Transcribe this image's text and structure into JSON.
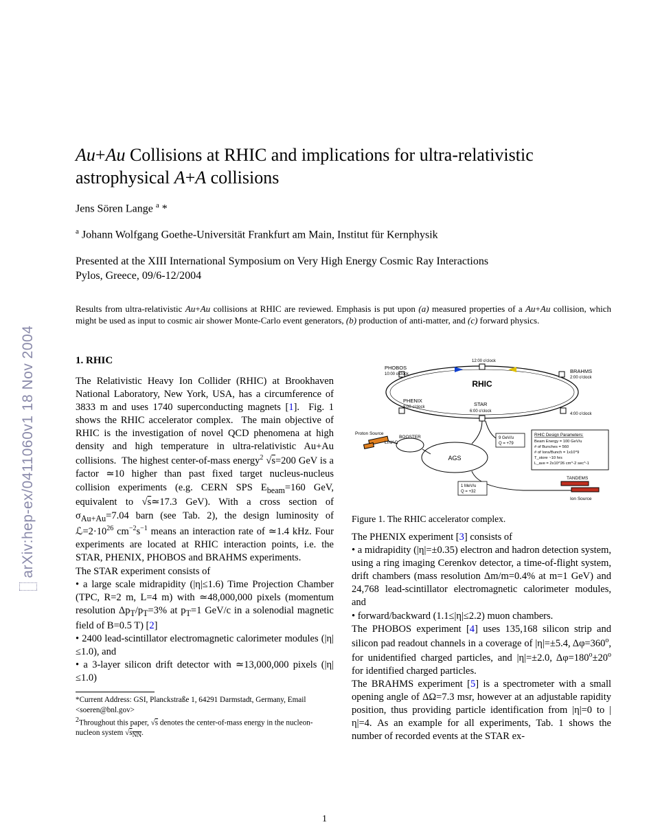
{
  "arxiv": {
    "id": "arXiv:hep-ex/0411060v1  18 Nov 2004"
  },
  "title_html": "<span class='ital'>Au</span>+<span class='ital'>Au</span> Collisions at RHIC and implications for ultra-relativistic astrophysical <span class='ital'>A</span>+<span class='ital'>A</span> collisions",
  "author_html": "Jens Sören Lange <sup>a</sup> *",
  "affil_html": "<sup>a</sup> Johann Wolfgang Goethe-Universität Frankfurt am Main, Institut für Kernphysik",
  "presented_html": "Presented at the XIII International Symposium on Very High Energy Cosmic Ray Interactions<br>Pylos, Greece, 09/6-12/2004",
  "abstract_html": "Results from ultra-relativistic <span class='ital'>Au</span>+<span class='ital'>Au</span> collisions at RHIC are reviewed. Emphasis is put upon <span class='ital'>(a)</span> measured properties of a <span class='ital'>Au</span>+<span class='ital'>Au</span> collision, which might be used as input to cosmic air shower Monte-Carlo event generators, <span class='ital'>(b)</span> production of anti-matter, and <span class='ital'>(c)</span> forward physics.",
  "section1_head": "1. RHIC",
  "col1_body_html": "The Relativistic Heavy Ion Collider (RHIC) at Brookhaven National Laboratory, New York, USA, has a circumference of 3833 m and uses 1740 superconducting magnets [<span class='ref'>1</span>]. &nbsp;Fig.&nbsp;1 shows the RHIC accelerator complex. &nbsp;The main objective of RHIC is the investigation of novel QCD phenomena at high density and high temperature in ultra-relativistic <span class='ital'>Au</span>+<span class='ital'>Au</span> collisions. &nbsp;The highest center-of-mass energy<sup>2</sup> √<span style='text-decoration:overline'>s</span>=200 GeV is a factor ≃10 higher than past fixed target nucleus-nucleus collision experiments (e.g. CERN SPS <span class='ital'>E<sub>beam</sub></span>=160 GeV, equivalent to √<span style='text-decoration:overline'>s</span>≃17.3 GeV). With a cross section of σ<sub><span class='ital'>Au+Au</span></sub>=7.04 barn (see Tab. 2), the design luminosity of ℒ=2·10<sup>26</sup> cm<sup>−2</sup>s<sup>−1</sup> means an interaction rate of ≃1.4 kHz. Four experiments are located at RHIC interaction points, i.e. the STAR, PHENIX, PHOBOS and BRAHMS experiments.<br>The STAR experiment consists of<br><span class='bullet'>• a large scale midrapidity (|η|≤1.6) Time Projection Chamber (TPC, <span class='ital'>R</span>=2 m, <span class='ital'>L</span>=4 m) with ≃48,000,000 pixels (momentum resolution Δ<span class='ital'>p<sub>T</sub></span>/<span class='ital'>p<sub>T</sub></span>=3% at <span class='ital'>p<sub>T</sub></span>=1 GeV/c in a solenodial magnetic field of <span class='ital'>B</span>=0.5 T) [<span class='ref'>2</span>]</span><br><span class='bullet'>• 2400 lead-scintillator electromagnetic calorimeter modules (|η|≤1.0), and</span><br><span class='bullet'>• a 3-layer silicon drift detector with ≃13,000,000 pixels (|η|≤1.0)</span>",
  "footnote1_html": "*Current Address: GSI, Planckstraße 1, 64291 Darmstadt, Germany, Email &lt;soeren@bnl.gov&gt;",
  "footnote2_html": "<sup>2</sup>Throughout this paper, √<span style='text-decoration:overline'>s</span> denotes the center-of-mass energy in the nucleon-nucleon system √<span style='text-decoration:overline'>s<sub>NN</sub></span>.",
  "fig_caption": "Figure 1. The RHIC accelerator complex.",
  "col2_body_html": "The PHENIX experiment [<span class='ref'>3</span>] consists of<br>• a midrapidity (|η|=±0.35) electron and hadron detection system, using a ring imaging Cerenkov detector, a time-of-flight system, drift chambers (mass resolution Δ<span class='ital'>m</span>/<span class='ital'>m</span>=0.4% at <span class='ital'>m</span>=1 GeV) and 24,768 lead-scintillator electromagnetic calorimeter modules, and<br>• forward/backward (1.1≤|η|≤2.2) muon chambers.<br>The PHOBOS experiment [<span class='ref'>4</span>] uses 135,168 silicon strip and silicon pad readout channels in a coverage of |η|=±5.4, Δφ=360<sup>o</sup>, for unidentified charged particles, and |η|=±2.0, Δφ=180<sup>o</sup>±20<sup>o</sup> for identified charged particles.<br>The BRAHMS experiment [<span class='ref'>5</span>] is a spectrometer with a small opening angle of ΔΩ=7.3 msr, however at an adjustable rapidity position, thus providing particle identification from |η|=0 to |η|=4. As an example for all experiments, Tab. 1 shows the number of recorded events at the STAR ex-",
  "diagram": {
    "ring_label": "RHIC",
    "nodes": [
      {
        "label": "PHOBOS",
        "sub": "10:00 o'clock"
      },
      {
        "label": "12:00 o'clock",
        "sub": ""
      },
      {
        "label": "BRAHMS",
        "sub": "2:00 o'clock"
      },
      {
        "label": "4:00 o'clock",
        "sub": ""
      },
      {
        "label": "STAR",
        "sub": "6:00 o'clock"
      },
      {
        "label": "PHENIX",
        "sub": "8:00 o'clock"
      }
    ],
    "linac": "LINAC",
    "booster": "BOOSTER",
    "ags": "AGS",
    "proton_source": "Proton Source",
    "ion_source": "Ion Source",
    "tandems": "TANDEMS",
    "box1": [
      "9 GeV/u",
      "Q = +79"
    ],
    "box2": [
      "1 MeV/u",
      "Q = +32"
    ],
    "params_title": "RHIC Design Parameters:",
    "params": [
      "Beam Energy = 100 GeV/u",
      "# of Bunches = 560",
      "# of Ions/Bunch = 1x10^9",
      "T_store ~10 hrs",
      "L_ave = 2x10^26 cm^-2 sec^-1"
    ],
    "colors": {
      "ring": "#000000",
      "arrow_blue": "#1040d0",
      "arrow_yellow": "#e0c000",
      "linac_orange": "#e08020",
      "tandem_red": "#c03020",
      "bg": "#ffffff"
    }
  },
  "pagenum": "1"
}
